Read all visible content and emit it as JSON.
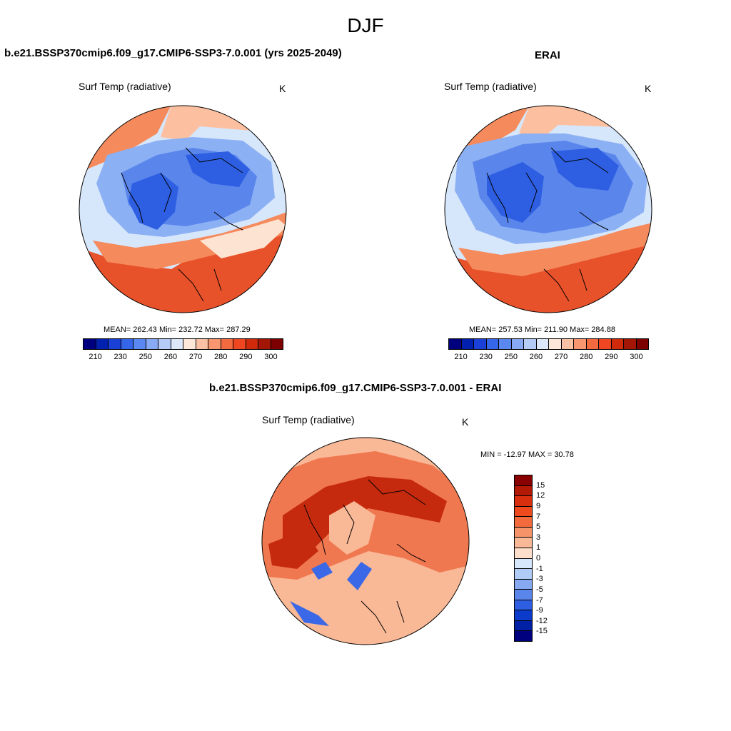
{
  "season": "DJF",
  "panel1": {
    "title": "b.e21.BSSP370cmip6.f09_g17.CMIP6-SSP3-7.0.001 (yrs 2025-2049)",
    "subtitle": "Surf Temp (radiative)",
    "units": "K",
    "stats": "MEAN= 262.43  Min= 232.72  Max= 287.29"
  },
  "panel2": {
    "title": "ERAI",
    "subtitle": "Surf Temp (radiative)",
    "units": "K",
    "stats": "MEAN= 257.53  Min= 211.90  Max= 284.88"
  },
  "panel3": {
    "title": "b.e21.BSSP370cmip6.f09_g17.CMIP6-SSP3-7.0.001 - ERAI",
    "subtitle": "Surf Temp (radiative)",
    "units": "K",
    "stats": "MIN = -12.97 MAX =  30.78"
  },
  "abs_colorbar": {
    "labels": [
      "210",
      "230",
      "250",
      "260",
      "270",
      "280",
      "290",
      "300"
    ],
    "colors": [
      "#00007f",
      "#0020b0",
      "#1a40d8",
      "#3565e8",
      "#5a88f0",
      "#88aaf5",
      "#b5ccf8",
      "#dde9fb",
      "#fde7d8",
      "#fbc1a4",
      "#f89670",
      "#f46a40",
      "#ee4620",
      "#cf2a0b",
      "#a31505",
      "#7d0000"
    ]
  },
  "diff_colorbar": {
    "labels": [
      "15",
      "12",
      "9",
      "7",
      "5",
      "3",
      "1",
      "0",
      "-1",
      "-3",
      "-5",
      "-7",
      "-9",
      "-12",
      "-15"
    ],
    "colors": [
      "#880000",
      "#b21a05",
      "#d8300e",
      "#ee4a1e",
      "#f36a3c",
      "#f69368",
      "#f9b896",
      "#fddfcc",
      "#d6e6fb",
      "#b0cbf6",
      "#86a9f2",
      "#5a86ec",
      "#2e5fe2",
      "#0a3bcb",
      "#0020a6",
      "#00007f"
    ]
  },
  "map_colors": {
    "warm_far": "#e8522a",
    "warm": "#f58a5c",
    "mild": "#fcc0a0",
    "neutral": "#fde4d2",
    "cool": "#d6e6fb",
    "cold": "#8cb0f4",
    "colder": "#5a86ec",
    "coldest": "#2e5fe2",
    "diff_high": "#c52a0e",
    "diff_mid": "#f07850",
    "diff_low": "#f9b896",
    "diff_neg": "#3a68e6"
  }
}
